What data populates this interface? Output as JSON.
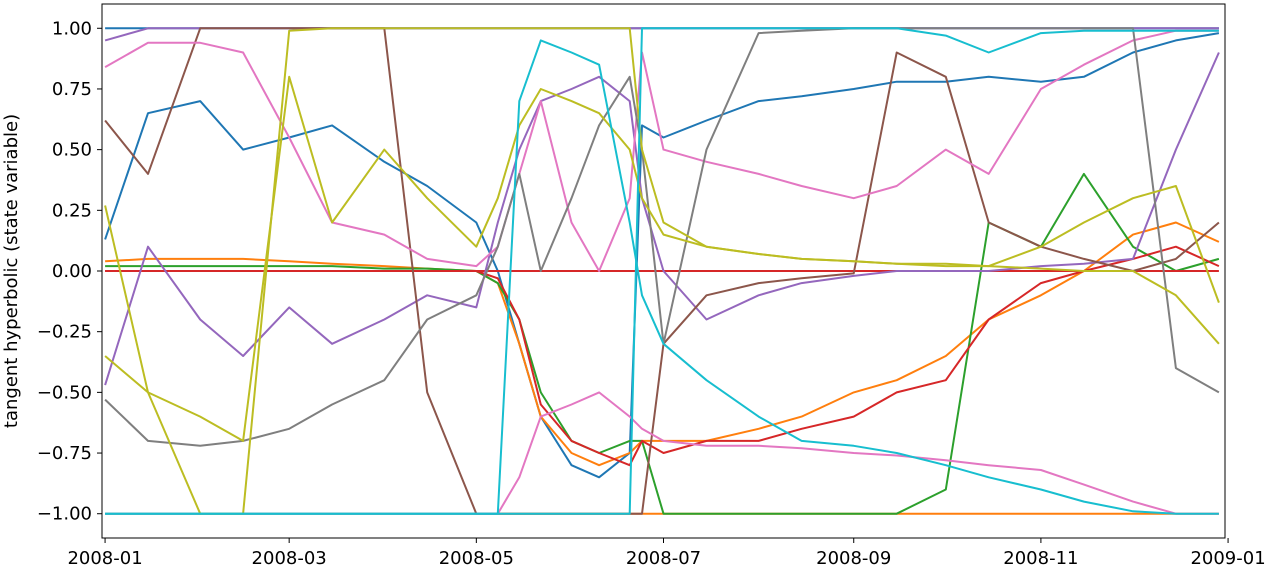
{
  "chart_data": {
    "type": "line",
    "title": "",
    "xlabel": "",
    "ylabel": "tangent hyperbolic (state variable)",
    "xlim": [
      "2007-12-31",
      "2008-12-31"
    ],
    "ylim": [
      -1.1,
      1.1
    ],
    "grid": false,
    "legend": "none",
    "x_ticks": [
      "2008-01",
      "2008-03",
      "2008-05",
      "2008-07",
      "2008-09",
      "2008-11",
      "2009-01"
    ],
    "y_ticks": [
      "1.00",
      "0.75",
      "0.50",
      "0.25",
      "0.00",
      "−0.25",
      "−0.50",
      "−0.75",
      "−1.00"
    ],
    "x_dates": [
      "2008-01-01",
      "2008-01-15",
      "2008-02-01",
      "2008-02-15",
      "2008-03-01",
      "2008-03-15",
      "2008-04-01",
      "2008-04-15",
      "2008-05-01",
      "2008-05-08",
      "2008-05-15",
      "2008-05-22",
      "2008-06-01",
      "2008-06-10",
      "2008-06-20",
      "2008-06-24",
      "2008-07-01",
      "2008-07-15",
      "2008-08-01",
      "2008-08-15",
      "2008-09-01",
      "2008-09-15",
      "2008-10-01",
      "2008-10-15",
      "2008-11-01",
      "2008-11-15",
      "2008-12-01",
      "2008-12-15",
      "2008-12-29"
    ],
    "series": [
      {
        "color": "#1f77b4",
        "values": [
          0.13,
          0.65,
          0.7,
          0.5,
          0.55,
          0.6,
          0.45,
          0.35,
          0.2,
          0.0,
          -0.3,
          -0.6,
          -0.8,
          -0.85,
          -0.75,
          0.6,
          0.55,
          0.62,
          0.7,
          0.72,
          0.75,
          0.78,
          0.78,
          0.8,
          0.78,
          0.8,
          0.9,
          0.95,
          0.98
        ]
      },
      {
        "color": "#1f77b4",
        "values": [
          1.0,
          1.0,
          1.0,
          1.0,
          1.0,
          1.0,
          1.0,
          1.0,
          1.0,
          1.0,
          1.0,
          1.0,
          1.0,
          1.0,
          1.0,
          1.0,
          1.0,
          1.0,
          1.0,
          1.0,
          1.0,
          1.0,
          1.0,
          1.0,
          1.0,
          1.0,
          1.0,
          1.0,
          1.0
        ]
      },
      {
        "color": "#ff7f0e",
        "values": [
          0.04,
          0.05,
          0.05,
          0.05,
          0.04,
          0.03,
          0.02,
          0.01,
          0.0,
          -0.05,
          -0.3,
          -0.6,
          -0.75,
          -0.8,
          -0.75,
          -0.7,
          -0.7,
          -0.7,
          -0.65,
          -0.6,
          -0.5,
          -0.45,
          -0.35,
          -0.2,
          -0.1,
          0.0,
          0.15,
          0.2,
          0.12
        ]
      },
      {
        "color": "#ff7f0e",
        "values": [
          -1.0,
          -1.0,
          -1.0,
          -1.0,
          -1.0,
          -1.0,
          -1.0,
          -1.0,
          -1.0,
          -1.0,
          -1.0,
          -1.0,
          -1.0,
          -1.0,
          -1.0,
          -1.0,
          -1.0,
          -1.0,
          -1.0,
          -1.0,
          -1.0,
          -1.0,
          -1.0,
          -1.0,
          -1.0,
          -1.0,
          -1.0,
          -1.0,
          -1.0
        ]
      },
      {
        "color": "#2ca02c",
        "values": [
          0.02,
          0.02,
          0.02,
          0.02,
          0.02,
          0.02,
          0.01,
          0.01,
          0.0,
          -0.05,
          -0.2,
          -0.5,
          -0.7,
          -0.75,
          -0.7,
          -0.7,
          -1.0,
          -1.0,
          -1.0,
          -1.0,
          -1.0,
          -1.0,
          -0.9,
          0.2,
          0.1,
          0.4,
          0.1,
          0.0,
          0.05
        ]
      },
      {
        "color": "#d62728",
        "values": [
          0.0,
          0.0,
          0.0,
          0.0,
          0.0,
          0.0,
          0.0,
          0.0,
          0.0,
          -0.03,
          -0.2,
          -0.55,
          -0.7,
          -0.75,
          -0.8,
          -0.7,
          -0.75,
          -0.7,
          -0.7,
          -0.65,
          -0.6,
          -0.5,
          -0.45,
          -0.2,
          -0.05,
          0.0,
          0.05,
          0.1,
          0.02
        ]
      },
      {
        "color": "#d62728",
        "values": [
          0.0,
          0.0,
          0.0,
          0.0,
          0.0,
          0.0,
          0.0,
          0.0,
          0.0,
          0.0,
          0.0,
          0.0,
          0.0,
          0.0,
          0.0,
          0.0,
          0.0,
          0.0,
          0.0,
          0.0,
          0.0,
          0.0,
          0.0,
          0.0,
          0.0,
          0.0,
          0.0,
          0.0,
          0.0
        ]
      },
      {
        "color": "#9467bd",
        "values": [
          -0.47,
          0.1,
          -0.2,
          -0.35,
          -0.15,
          -0.3,
          -0.2,
          -0.1,
          -0.15,
          0.2,
          0.5,
          0.7,
          0.75,
          0.8,
          0.7,
          0.3,
          0.0,
          -0.2,
          -0.1,
          -0.05,
          -0.02,
          0.0,
          0.0,
          0.0,
          0.02,
          0.03,
          0.05,
          0.5,
          0.9
        ]
      },
      {
        "color": "#9467bd",
        "values": [
          0.95,
          1.0,
          1.0,
          1.0,
          1.0,
          1.0,
          1.0,
          1.0,
          1.0,
          1.0,
          1.0,
          1.0,
          1.0,
          1.0,
          1.0,
          1.0,
          1.0,
          1.0,
          1.0,
          1.0,
          1.0,
          1.0,
          1.0,
          1.0,
          1.0,
          1.0,
          1.0,
          1.0,
          1.0
        ]
      },
      {
        "color": "#8c564b",
        "values": [
          0.62,
          0.4,
          1.0,
          1.0,
          1.0,
          1.0,
          1.0,
          -0.5,
          -1.0,
          -1.0,
          -1.0,
          -1.0,
          -1.0,
          -1.0,
          -1.0,
          -1.0,
          -0.3,
          -0.1,
          -0.05,
          -0.03,
          -0.01,
          0.9,
          0.8,
          0.2,
          0.1,
          0.05,
          0.0,
          0.05,
          0.2
        ]
      },
      {
        "color": "#e377c2",
        "values": [
          0.84,
          0.94,
          0.94,
          0.9,
          0.55,
          0.2,
          0.15,
          0.05,
          0.02,
          0.1,
          0.4,
          0.7,
          0.2,
          0.0,
          0.3,
          0.9,
          0.5,
          0.45,
          0.4,
          0.35,
          0.3,
          0.35,
          0.5,
          0.4,
          0.75,
          0.85,
          0.95,
          0.99,
          0.99
        ]
      },
      {
        "color": "#e377c2",
        "values": [
          -1.0,
          -1.0,
          -1.0,
          -1.0,
          -1.0,
          -1.0,
          -1.0,
          -1.0,
          -1.0,
          -1.0,
          -0.85,
          -0.6,
          -0.55,
          -0.5,
          -0.6,
          -0.65,
          -0.7,
          -0.72,
          -0.72,
          -0.73,
          -0.75,
          -0.76,
          -0.78,
          -0.8,
          -0.82,
          -0.88,
          -0.95,
          -1.0,
          -1.0
        ]
      },
      {
        "color": "#7f7f7f",
        "values": [
          -0.53,
          -0.7,
          -0.72,
          -0.7,
          -0.65,
          -0.55,
          -0.45,
          -0.2,
          -0.1,
          0.1,
          0.4,
          0.0,
          0.3,
          0.6,
          0.8,
          0.5,
          -0.3,
          0.5,
          0.98,
          0.99,
          1.0,
          1.0,
          1.0,
          1.0,
          1.0,
          1.0,
          1.0,
          -0.4,
          -0.5
        ]
      },
      {
        "color": "#bcbd22",
        "values": [
          0.27,
          -0.5,
          -0.6,
          -0.7,
          0.8,
          0.2,
          0.5,
          0.3,
          0.1,
          0.3,
          0.6,
          0.75,
          0.7,
          0.65,
          0.5,
          0.3,
          0.15,
          0.1,
          0.07,
          0.05,
          0.04,
          0.03,
          0.03,
          0.02,
          0.1,
          0.2,
          0.3,
          0.35,
          -0.13
        ]
      },
      {
        "color": "#bcbd22",
        "values": [
          -0.35,
          -0.5,
          -1.0,
          -1.0,
          0.99,
          1.0,
          1.0,
          1.0,
          1.0,
          1.0,
          1.0,
          1.0,
          1.0,
          1.0,
          1.0,
          0.5,
          0.2,
          0.1,
          0.07,
          0.05,
          0.04,
          0.03,
          0.02,
          0.02,
          0.01,
          0.0,
          0.0,
          -0.1,
          -0.3
        ]
      },
      {
        "color": "#17becf",
        "values": [
          -1.0,
          -1.0,
          -1.0,
          -1.0,
          -1.0,
          -1.0,
          -1.0,
          -1.0,
          -1.0,
          -1.0,
          0.7,
          0.95,
          0.9,
          0.85,
          0.2,
          -0.1,
          -0.3,
          -0.45,
          -0.6,
          -0.7,
          -0.72,
          -0.75,
          -0.8,
          -0.85,
          -0.9,
          -0.95,
          -0.99,
          -1.0,
          -1.0
        ]
      },
      {
        "color": "#17becf",
        "values": [
          -1.0,
          -1.0,
          -1.0,
          -1.0,
          -1.0,
          -1.0,
          -1.0,
          -1.0,
          -1.0,
          -1.0,
          -1.0,
          -1.0,
          -1.0,
          -1.0,
          -1.0,
          1.0,
          1.0,
          1.0,
          1.0,
          1.0,
          1.0,
          1.0,
          0.97,
          0.9,
          0.98,
          0.99,
          0.99,
          0.99,
          0.99
        ]
      }
    ]
  }
}
